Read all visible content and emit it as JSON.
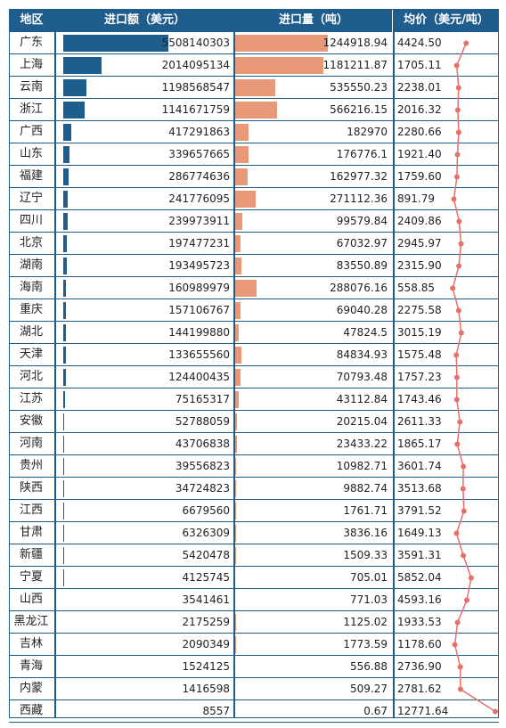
{
  "headers": {
    "region": "地区",
    "import_value": "进口额（美元）",
    "import_qty": "进口量（吨）",
    "avg_price": "均价（美元/吨）"
  },
  "colors": {
    "header_bg": "#1f5d8c",
    "value_bar": "#1f5d8c",
    "qty_bar": "#e8997a",
    "price_line": "#e8706a"
  },
  "chart_data": {
    "type": "table",
    "columns": [
      "地区",
      "进口额（美元）",
      "进口量（吨）",
      "均价（美元/吨）"
    ],
    "rows": [
      {
        "region": "广东",
        "value": 5508140303,
        "value_text": "5508140303",
        "qty": 1244918.94,
        "qty_text": "1244918.94",
        "price": 4424.5,
        "price_text": "4424.50"
      },
      {
        "region": "上海",
        "value": 2014095134,
        "value_text": "2014095134",
        "qty": 1181211.87,
        "qty_text": "1181211.87",
        "price": 1705.11,
        "price_text": "1705.11"
      },
      {
        "region": "云南",
        "value": 1198568547,
        "value_text": "1198568547",
        "qty": 535550.23,
        "qty_text": "535550.23",
        "price": 2238.01,
        "price_text": "2238.01"
      },
      {
        "region": "浙江",
        "value": 1141671759,
        "value_text": "1141671759",
        "qty": 566216.15,
        "qty_text": "566216.15",
        "price": 2016.32,
        "price_text": "2016.32"
      },
      {
        "region": "广西",
        "value": 417291863,
        "value_text": "417291863",
        "qty": 182970,
        "qty_text": "182970",
        "price": 2280.66,
        "price_text": "2280.66"
      },
      {
        "region": "山东",
        "value": 339657665,
        "value_text": "339657665",
        "qty": 176776.1,
        "qty_text": "176776.1",
        "price": 1921.4,
        "price_text": "1921.40"
      },
      {
        "region": "福建",
        "value": 286774636,
        "value_text": "286774636",
        "qty": 162977.32,
        "qty_text": "162977.32",
        "price": 1759.6,
        "price_text": "1759.60"
      },
      {
        "region": "辽宁",
        "value": 241776095,
        "value_text": "241776095",
        "qty": 271112.36,
        "qty_text": "271112.36",
        "price": 891.79,
        "price_text": "891.79"
      },
      {
        "region": "四川",
        "value": 239973911,
        "value_text": "239973911",
        "qty": 99579.84,
        "qty_text": "99579.84",
        "price": 2409.86,
        "price_text": "2409.86"
      },
      {
        "region": "北京",
        "value": 197477231,
        "value_text": "197477231",
        "qty": 67032.97,
        "qty_text": "67032.97",
        "price": 2945.97,
        "price_text": "2945.97"
      },
      {
        "region": "湖南",
        "value": 193495723,
        "value_text": "193495723",
        "qty": 83550.89,
        "qty_text": "83550.89",
        "price": 2315.9,
        "price_text": "2315.90"
      },
      {
        "region": "海南",
        "value": 160989979,
        "value_text": "160989979",
        "qty": 288076.16,
        "qty_text": "288076.16",
        "price": 558.85,
        "price_text": "558.85"
      },
      {
        "region": "重庆",
        "value": 157106767,
        "value_text": "157106767",
        "qty": 69040.28,
        "qty_text": "69040.28",
        "price": 2275.58,
        "price_text": "2275.58"
      },
      {
        "region": "湖北",
        "value": 144199880,
        "value_text": "144199880",
        "qty": 47824.5,
        "qty_text": "47824.5",
        "price": 3015.19,
        "price_text": "3015.19"
      },
      {
        "region": "天津",
        "value": 133655560,
        "value_text": "133655560",
        "qty": 84834.93,
        "qty_text": "84834.93",
        "price": 1575.48,
        "price_text": "1575.48"
      },
      {
        "region": "河北",
        "value": 124400435,
        "value_text": "124400435",
        "qty": 70793.48,
        "qty_text": "70793.48",
        "price": 1757.23,
        "price_text": "1757.23"
      },
      {
        "region": "江苏",
        "value": 75165317,
        "value_text": "75165317",
        "qty": 43112.84,
        "qty_text": "43112.84",
        "price": 1743.46,
        "price_text": "1743.46"
      },
      {
        "region": "安徽",
        "value": 52788059,
        "value_text": "52788059",
        "qty": 20215.04,
        "qty_text": "20215.04",
        "price": 2611.33,
        "price_text": "2611.33"
      },
      {
        "region": "河南",
        "value": 43706838,
        "value_text": "43706838",
        "qty": 23433.22,
        "qty_text": "23433.22",
        "price": 1865.17,
        "price_text": "1865.17"
      },
      {
        "region": "贵州",
        "value": 39556823,
        "value_text": "39556823",
        "qty": 10982.71,
        "qty_text": "10982.71",
        "price": 3601.74,
        "price_text": "3601.74"
      },
      {
        "region": "陕西",
        "value": 34724823,
        "value_text": "34724823",
        "qty": 9882.74,
        "qty_text": "9882.74",
        "price": 3513.68,
        "price_text": "3513.68"
      },
      {
        "region": "江西",
        "value": 6679560,
        "value_text": "6679560",
        "qty": 1761.71,
        "qty_text": "1761.71",
        "price": 3791.52,
        "price_text": "3791.52"
      },
      {
        "region": "甘肃",
        "value": 6326309,
        "value_text": "6326309",
        "qty": 3836.16,
        "qty_text": "3836.16",
        "price": 1649.13,
        "price_text": "1649.13"
      },
      {
        "region": "新疆",
        "value": 5420478,
        "value_text": "5420478",
        "qty": 1509.33,
        "qty_text": "1509.33",
        "price": 3591.31,
        "price_text": "3591.31"
      },
      {
        "region": "宁夏",
        "value": 4125745,
        "value_text": "4125745",
        "qty": 705.01,
        "qty_text": "705.01",
        "price": 5852.04,
        "price_text": "5852.04"
      },
      {
        "region": "山西",
        "value": 3541461,
        "value_text": "3541461",
        "qty": 771.03,
        "qty_text": "771.03",
        "price": 4593.16,
        "price_text": "4593.16"
      },
      {
        "region": "黑龙江",
        "value": 2175259,
        "value_text": "2175259",
        "qty": 1125.02,
        "qty_text": "1125.02",
        "price": 1933.53,
        "price_text": "1933.53"
      },
      {
        "region": "吉林",
        "value": 2090349,
        "value_text": "2090349",
        "qty": 1773.59,
        "qty_text": "1773.59",
        "price": 1178.6,
        "price_text": "1178.60"
      },
      {
        "region": "青海",
        "value": 1524125,
        "value_text": "1524125",
        "qty": 556.88,
        "qty_text": "556.88",
        "price": 2736.9,
        "price_text": "2736.90"
      },
      {
        "region": "内蒙",
        "value": 1416598,
        "value_text": "1416598",
        "qty": 509.27,
        "qty_text": "509.27",
        "price": 2781.62,
        "price_text": "2781.62"
      },
      {
        "region": "西藏",
        "value": 8557,
        "value_text": "8557",
        "qty": 0.67,
        "qty_text": "0.67",
        "price": 12771.64,
        "price_text": "12771.64"
      }
    ]
  }
}
